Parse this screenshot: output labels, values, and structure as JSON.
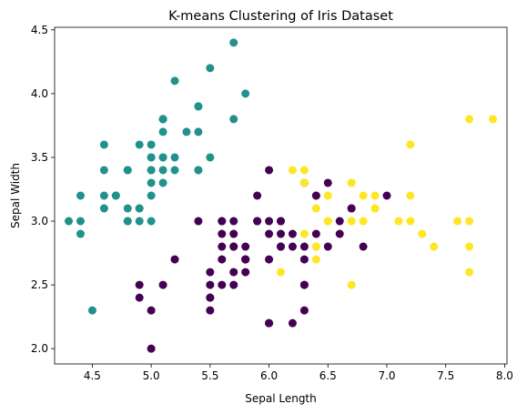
{
  "chart_data": {
    "type": "scatter",
    "title": "K-means Clustering of Iris Dataset",
    "xlabel": "Sepal Length",
    "ylabel": "Sepal Width",
    "xlim": [
      4.18,
      8.02
    ],
    "ylim": [
      1.88,
      4.52
    ],
    "xticks": [
      "4.5",
      "5.0",
      "5.5",
      "6.0",
      "6.5",
      "7.0",
      "7.5",
      "8.0"
    ],
    "yticks": [
      "2.0",
      "2.5",
      "3.0",
      "3.5",
      "4.0",
      "4.5"
    ],
    "grid": false,
    "cluster_colors": [
      "#440154",
      "#21918c",
      "#fde725"
    ],
    "points": [
      [
        5.1,
        3.5,
        1
      ],
      [
        4.9,
        3.0,
        1
      ],
      [
        4.7,
        3.2,
        1
      ],
      [
        4.6,
        3.1,
        1
      ],
      [
        5.0,
        3.6,
        1
      ],
      [
        5.4,
        3.9,
        1
      ],
      [
        4.6,
        3.4,
        1
      ],
      [
        5.0,
        3.4,
        1
      ],
      [
        4.4,
        2.9,
        1
      ],
      [
        4.9,
        3.1,
        1
      ],
      [
        5.4,
        3.7,
        1
      ],
      [
        4.8,
        3.4,
        1
      ],
      [
        4.8,
        3.0,
        1
      ],
      [
        4.3,
        3.0,
        1
      ],
      [
        5.8,
        4.0,
        1
      ],
      [
        5.7,
        4.4,
        1
      ],
      [
        5.4,
        3.9,
        1
      ],
      [
        5.1,
        3.5,
        1
      ],
      [
        5.7,
        3.8,
        1
      ],
      [
        5.1,
        3.8,
        1
      ],
      [
        5.4,
        3.4,
        1
      ],
      [
        5.1,
        3.7,
        1
      ],
      [
        4.6,
        3.6,
        1
      ],
      [
        5.1,
        3.3,
        1
      ],
      [
        4.8,
        3.4,
        1
      ],
      [
        5.0,
        3.0,
        1
      ],
      [
        5.0,
        3.4,
        1
      ],
      [
        5.2,
        3.5,
        1
      ],
      [
        5.2,
        3.4,
        1
      ],
      [
        4.7,
        3.2,
        1
      ],
      [
        4.8,
        3.1,
        1
      ],
      [
        5.4,
        3.4,
        1
      ],
      [
        5.2,
        4.1,
        1
      ],
      [
        5.5,
        4.2,
        1
      ],
      [
        4.9,
        3.1,
        1
      ],
      [
        5.0,
        3.2,
        1
      ],
      [
        5.5,
        3.5,
        1
      ],
      [
        4.9,
        3.6,
        1
      ],
      [
        4.4,
        3.0,
        1
      ],
      [
        5.1,
        3.4,
        1
      ],
      [
        5.0,
        3.5,
        1
      ],
      [
        4.5,
        2.3,
        1
      ],
      [
        4.4,
        3.2,
        1
      ],
      [
        5.0,
        3.5,
        1
      ],
      [
        5.1,
        3.8,
        1
      ],
      [
        4.8,
        3.0,
        1
      ],
      [
        5.1,
        3.8,
        1
      ],
      [
        4.6,
        3.2,
        1
      ],
      [
        5.3,
        3.7,
        1
      ],
      [
        5.0,
        3.3,
        1
      ],
      [
        7.0,
        3.2,
        0
      ],
      [
        6.4,
        3.2,
        0
      ],
      [
        6.9,
        3.1,
        2
      ],
      [
        5.5,
        2.3,
        0
      ],
      [
        6.5,
        2.8,
        0
      ],
      [
        5.7,
        2.8,
        0
      ],
      [
        6.3,
        3.3,
        0
      ],
      [
        4.9,
        2.4,
        0
      ],
      [
        6.6,
        2.9,
        0
      ],
      [
        5.2,
        2.7,
        0
      ],
      [
        5.0,
        2.0,
        0
      ],
      [
        5.9,
        3.0,
        0
      ],
      [
        6.0,
        2.2,
        0
      ],
      [
        6.1,
        2.9,
        0
      ],
      [
        5.6,
        2.9,
        0
      ],
      [
        6.7,
        3.1,
        0
      ],
      [
        5.6,
        3.0,
        0
      ],
      [
        5.8,
        2.7,
        0
      ],
      [
        6.2,
        2.2,
        0
      ],
      [
        5.6,
        2.5,
        0
      ],
      [
        5.9,
        3.2,
        0
      ],
      [
        6.1,
        2.8,
        0
      ],
      [
        6.3,
        2.5,
        0
      ],
      [
        6.1,
        2.8,
        0
      ],
      [
        6.4,
        2.9,
        0
      ],
      [
        6.6,
        3.0,
        0
      ],
      [
        6.8,
        2.8,
        0
      ],
      [
        6.7,
        3.0,
        2
      ],
      [
        6.0,
        2.9,
        0
      ],
      [
        5.7,
        2.6,
        0
      ],
      [
        5.5,
        2.4,
        0
      ],
      [
        5.5,
        2.4,
        0
      ],
      [
        5.8,
        2.7,
        0
      ],
      [
        6.0,
        2.7,
        0
      ],
      [
        5.4,
        3.0,
        0
      ],
      [
        6.0,
        3.4,
        0
      ],
      [
        6.7,
        3.1,
        0
      ],
      [
        6.3,
        2.3,
        0
      ],
      [
        5.6,
        3.0,
        0
      ],
      [
        5.5,
        2.5,
        0
      ],
      [
        5.5,
        2.6,
        0
      ],
      [
        6.1,
        3.0,
        0
      ],
      [
        5.8,
        2.6,
        0
      ],
      [
        5.0,
        2.3,
        0
      ],
      [
        5.6,
        2.7,
        0
      ],
      [
        5.7,
        3.0,
        0
      ],
      [
        5.7,
        2.9,
        0
      ],
      [
        6.2,
        2.9,
        0
      ],
      [
        5.1,
        2.5,
        0
      ],
      [
        5.7,
        2.8,
        0
      ],
      [
        6.3,
        3.3,
        2
      ],
      [
        5.8,
        2.7,
        0
      ],
      [
        7.1,
        3.0,
        2
      ],
      [
        6.3,
        2.9,
        2
      ],
      [
        6.5,
        3.0,
        2
      ],
      [
        7.6,
        3.0,
        2
      ],
      [
        4.9,
        2.5,
        0
      ],
      [
        7.3,
        2.9,
        2
      ],
      [
        6.7,
        2.5,
        2
      ],
      [
        7.2,
        3.6,
        2
      ],
      [
        6.5,
        3.2,
        2
      ],
      [
        6.4,
        2.7,
        2
      ],
      [
        6.8,
        3.0,
        2
      ],
      [
        5.7,
        2.5,
        0
      ],
      [
        5.8,
        2.8,
        0
      ],
      [
        6.4,
        3.2,
        2
      ],
      [
        6.5,
        3.0,
        2
      ],
      [
        7.7,
        3.8,
        2
      ],
      [
        7.7,
        2.6,
        2
      ],
      [
        6.0,
        2.2,
        0
      ],
      [
        6.9,
        3.2,
        2
      ],
      [
        5.6,
        2.8,
        0
      ],
      [
        7.7,
        2.8,
        2
      ],
      [
        6.3,
        2.7,
        0
      ],
      [
        6.7,
        3.3,
        2
      ],
      [
        7.2,
        3.2,
        2
      ],
      [
        6.2,
        2.8,
        0
      ],
      [
        6.1,
        3.0,
        0
      ],
      [
        6.4,
        2.8,
        2
      ],
      [
        7.2,
        3.0,
        2
      ],
      [
        7.4,
        2.8,
        2
      ],
      [
        7.9,
        3.8,
        2
      ],
      [
        6.4,
        2.8,
        2
      ],
      [
        6.3,
        2.8,
        0
      ],
      [
        6.1,
        2.6,
        2
      ],
      [
        7.7,
        3.0,
        2
      ],
      [
        6.3,
        3.4,
        2
      ],
      [
        6.4,
        3.1,
        2
      ],
      [
        6.0,
        3.0,
        0
      ],
      [
        6.9,
        3.1,
        2
      ],
      [
        6.7,
        3.1,
        2
      ],
      [
        6.9,
        3.1,
        2
      ],
      [
        5.8,
        2.7,
        0
      ],
      [
        6.8,
        3.2,
        2
      ],
      [
        6.7,
        3.3,
        2
      ],
      [
        6.7,
        3.0,
        2
      ],
      [
        6.3,
        2.5,
        0
      ],
      [
        6.5,
        3.0,
        2
      ],
      [
        6.2,
        3.4,
        2
      ],
      [
        5.9,
        3.0,
        0
      ],
      [
        6.5,
        3.3,
        0
      ],
      [
        6.4,
        3.2,
        0
      ],
      [
        6.7,
        3.1,
        0
      ]
    ]
  }
}
